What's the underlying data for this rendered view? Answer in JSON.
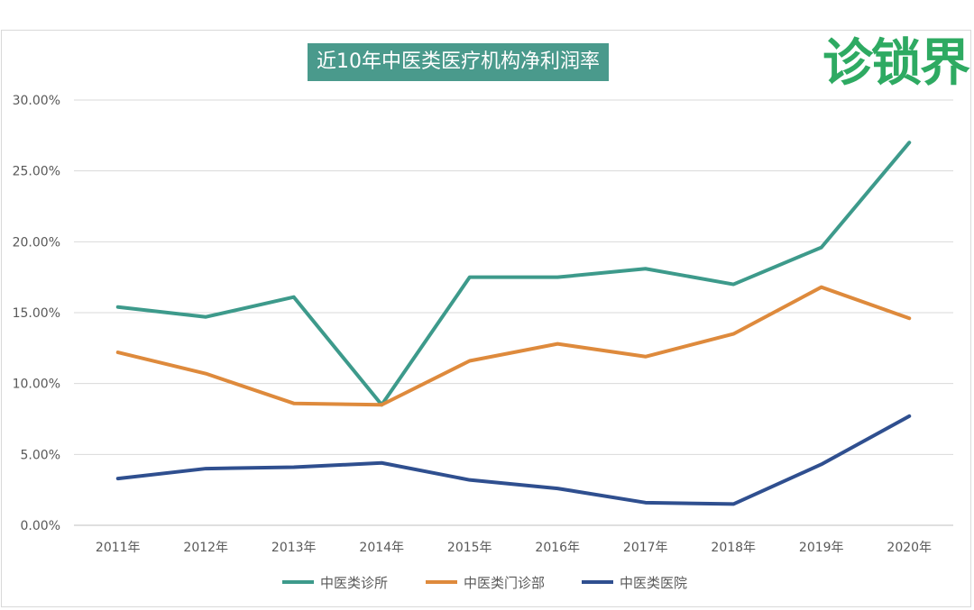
{
  "chart_data": {
    "type": "line",
    "title": "近10年中医类医疗机构净利润率",
    "categories": [
      "2011年",
      "2012年",
      "2013年",
      "2014年",
      "2015年",
      "2016年",
      "2017年",
      "2018年",
      "2019年",
      "2020年"
    ],
    "ylim": [
      0,
      30
    ],
    "yticks": [
      "0.00%",
      "5.00%",
      "10.00%",
      "15.00%",
      "20.00%",
      "25.00%",
      "30.00%"
    ],
    "grid": true,
    "legend": "bottom",
    "series": [
      {
        "name": "中医类诊所",
        "color": "#3d9a8b",
        "values": [
          15.4,
          14.7,
          16.1,
          8.5,
          17.5,
          17.5,
          18.1,
          17.0,
          19.6,
          27.0
        ]
      },
      {
        "name": "中医类门诊部",
        "color": "#de8a3c",
        "values": [
          12.2,
          10.7,
          8.6,
          8.5,
          11.6,
          12.8,
          11.9,
          13.5,
          16.8,
          14.6
        ]
      },
      {
        "name": "中医类医院",
        "color": "#2f4f8f",
        "values": [
          3.3,
          4.0,
          4.1,
          4.4,
          3.2,
          2.6,
          1.6,
          1.5,
          4.3,
          7.7
        ]
      }
    ]
  },
  "logo": {
    "text": "诊锁界",
    "color": "#2eaa62"
  }
}
